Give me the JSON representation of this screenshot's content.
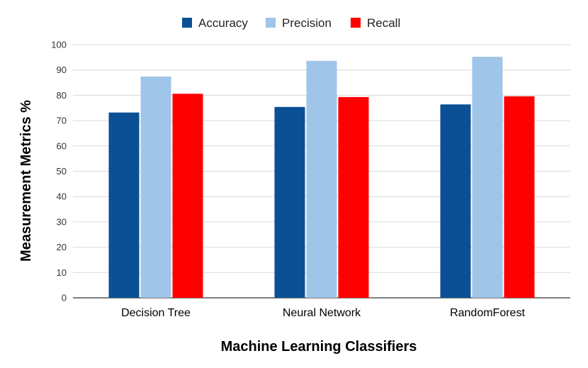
{
  "chart_data": {
    "type": "bar",
    "title": "",
    "xlabel": "Machine Learning Classifiers",
    "ylabel": "Measurement Metrics %",
    "categories": [
      "Decision Tree",
      "Neural Network",
      "RandomForest"
    ],
    "series": [
      {
        "name": "Accuracy",
        "color": "#0b4f94",
        "values": [
          73.2,
          75.4,
          76.4
        ]
      },
      {
        "name": "Precision",
        "color": "#9fc5e8",
        "values": [
          87.4,
          93.6,
          95.2
        ]
      },
      {
        "name": "Recall",
        "color": "#ff0000",
        "values": [
          80.6,
          79.3,
          79.6
        ]
      }
    ],
    "ylim": [
      0,
      100
    ],
    "yticks": [
      "0",
      "10",
      "20",
      "30",
      "40",
      "50",
      "60",
      "70",
      "80",
      "90",
      "100"
    ],
    "grid": true,
    "legend_position": "top-center"
  }
}
